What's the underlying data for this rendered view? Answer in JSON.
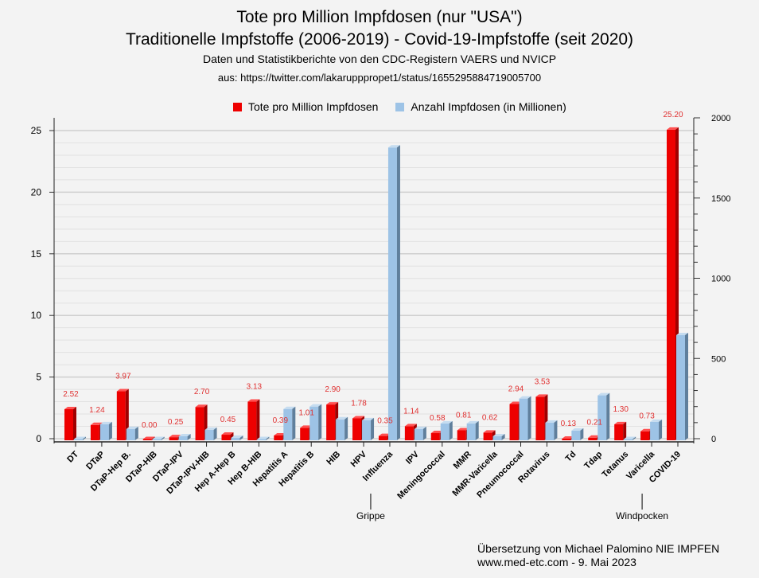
{
  "title": {
    "line1": "Tote pro Million Impfdosen (nur \"USA\")",
    "line2": "Traditionelle Impfstoffe (2006-2019) - Covid-19-Impfstoffe (seit 2020)",
    "line3": "Daten und Statistikberichte von den CDC-Registern VAERS und NVICP",
    "line4": "aus: https://twitter.com/lakarupppropet1/status/1655295884719005700"
  },
  "footer": {
    "line1": "Übersetzung von Michael Palomino NIE IMPFEN",
    "line2": "www.med-etc.com - 9. Mai 2023"
  },
  "annotations": [
    {
      "text": "Grippe",
      "category": "Influenza"
    },
    {
      "text": "Windpocken",
      "category": "Varicella"
    }
  ],
  "chart_data": {
    "type": "bar",
    "categories": [
      "DT",
      "DTaP",
      "DTaP-Hep B.",
      "DTaP-HIB",
      "DTaP-IPV",
      "DTaP-IPV-HIB",
      "Hep A-Hep B",
      "Hep B-HIB",
      "Hepatitis A",
      "Hepatitis B",
      "HIB",
      "HPV",
      "Influenza",
      "IPV",
      "Meningococcal",
      "MMR",
      "MMR-Varicella",
      "Pneumococcal",
      "Rotavirus",
      "Td",
      "Tdap",
      "Tetanus",
      "Varicella",
      "COVID-19"
    ],
    "series": [
      {
        "name": "Tote pro Million Impfdosen",
        "axis": "left",
        "color": "#ee0000",
        "values": [
          2.52,
          1.24,
          3.97,
          0.0,
          0.25,
          2.7,
          0.45,
          3.13,
          0.39,
          1.01,
          2.9,
          1.78,
          0.35,
          1.14,
          0.58,
          0.81,
          0.62,
          2.94,
          3.53,
          0.13,
          0.21,
          1.3,
          0.73,
          25.2
        ],
        "labels": [
          "2.52",
          "1.24",
          "3.97",
          "0.00",
          "0.25",
          "2.70",
          "0.45",
          "3.13",
          "0.39",
          "1.01",
          "2.90",
          "1.78",
          "0.35",
          "1.14",
          "0.58",
          "0.81",
          "0.62",
          "2.94",
          "3.53",
          "0.13",
          "0.21",
          "1.30",
          "0.73",
          "25.20"
        ]
      },
      {
        "name": "Anzahl Impfdosen (in Millionen)",
        "axis": "right",
        "color": "#9dc3e6",
        "values": [
          2,
          100,
          70,
          2,
          25,
          65,
          15,
          2,
          195,
          210,
          130,
          125,
          1825,
          70,
          105,
          105,
          25,
          260,
          110,
          60,
          280,
          2,
          115,
          655
        ]
      }
    ],
    "yleft": {
      "lim": [
        0,
        25
      ],
      "ticks": [
        "0",
        "5",
        "10",
        "15",
        "20",
        "25"
      ]
    },
    "yright": {
      "lim": [
        0,
        2000
      ],
      "ticks": [
        "0",
        "500",
        "1000",
        "1500",
        "2000"
      ]
    },
    "grid": true,
    "legend": "top"
  }
}
